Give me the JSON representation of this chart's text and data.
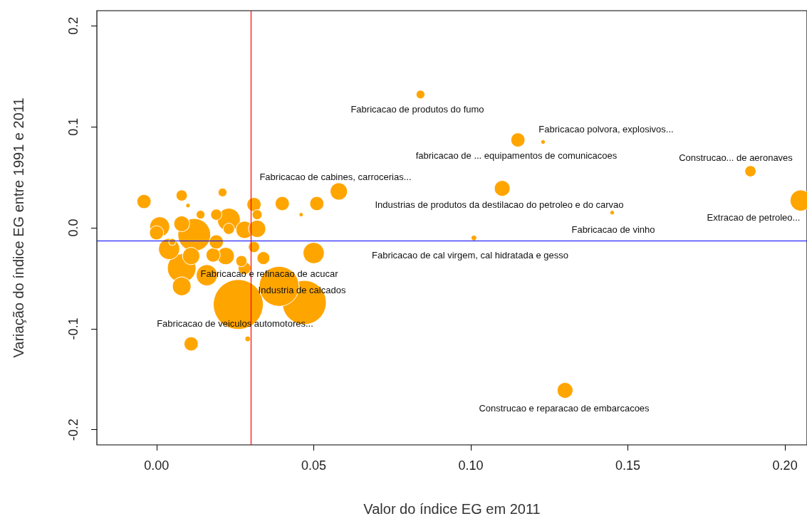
{
  "chart_data": {
    "type": "bubble",
    "xlabel": "Valor do índice EG em 2011",
    "ylabel": "Variação do índice EG entre 1991 e 2011",
    "color": "#ffa500",
    "marker": "circle",
    "grid": false,
    "x": [
      0.026,
      0.047,
      0.039,
      0.012,
      0.008,
      0.004,
      0.016,
      0.001,
      0.008,
      0.023,
      0.022,
      0.018,
      0.011,
      0.008,
      0.028,
      0.032,
      0.019,
      0.0,
      -0.004,
      0.031,
      0.008,
      0.028,
      0.023,
      0.034,
      0.027,
      0.031,
      0.019,
      0.014,
      0.032,
      0.021,
      0.005,
      0.01,
      0.084,
      0.115,
      0.123,
      0.189,
      0.205,
      0.11,
      0.145,
      0.101,
      0.05,
      0.058,
      0.051,
      0.04,
      0.046,
      0.13,
      0.011,
      0.029
    ],
    "values": [
      -0.076,
      -0.074,
      -0.058,
      -0.007,
      -0.04,
      -0.021,
      -0.047,
      0.001,
      0.004,
      0.008,
      -0.028,
      -0.027,
      -0.028,
      -0.058,
      -0.002,
      -0.001,
      -0.014,
      -0.005,
      0.026,
      0.023,
      0.032,
      -0.04,
      -0.001,
      -0.03,
      -0.033,
      -0.019,
      0.013,
      0.013,
      0.013,
      0.035,
      -0.014,
      0.022,
      0.132,
      0.087,
      0.085,
      0.056,
      0.027,
      0.039,
      0.015,
      -0.01,
      -0.025,
      0.036,
      0.024,
      0.024,
      0.013,
      -0.161,
      -0.115,
      -0.11
    ],
    "sizes": [
      1,
      0.78,
      0.64,
      0.43,
      0.33,
      0.18,
      0.18,
      0.16,
      0.1,
      0.21,
      0.12,
      0.08,
      0.12,
      0.14,
      0.12,
      0.12,
      0.08,
      0.08,
      0.08,
      0.08,
      0.05,
      0.066,
      0.05,
      0.066,
      0.05,
      0.05,
      0.05,
      0.03,
      0.04,
      0.03,
      0.02,
      0.008,
      0.03,
      0.08,
      0.008,
      0.05,
      0.18,
      0.1,
      0.008,
      0.013,
      0.18,
      0.12,
      0.08,
      0.08,
      0.007,
      0.1,
      0.08,
      0.013
    ],
    "xlim": [
      -0.019,
      0.207
    ],
    "ylim": [
      -0.215,
      0.215
    ],
    "xticks": [
      {
        "value": 0,
        "label": "0.00"
      },
      {
        "value": 0.05,
        "label": "0.05"
      },
      {
        "value": 0.1,
        "label": "0.10"
      },
      {
        "value": 0.15,
        "label": "0.15"
      },
      {
        "value": 0.2,
        "label": "0.20"
      }
    ],
    "yticks": [
      {
        "value": -0.2,
        "label": "-0.2"
      },
      {
        "value": -0.1,
        "label": "-0.1"
      },
      {
        "value": 0,
        "label": "0.0"
      },
      {
        "value": 0.1,
        "label": "0.1"
      },
      {
        "value": 0.2,
        "label": "0.2"
      }
    ],
    "ref_lines": [
      {
        "axis": "x",
        "value": 0.03,
        "color": "#ff0000"
      },
      {
        "axis": "y",
        "value": -0.013,
        "color": "#0000ff"
      }
    ],
    "annotations": [
      "Fabricacao de produtos do fumo",
      "Fabricacao polvora, explosivos...",
      "fabricacao de ... equipamentos de comunicacoes",
      "Construcao... de aeronaves",
      "Fabricacao de cabines, carrocerias...",
      "Industrias de produtos da destilacao do petroleo e do carvao",
      "Extracao de petroleo...",
      "Fabricacao de vinho",
      "Fabricacao de cal virgem, cal hidratada e gesso",
      "Fabricacao e refinacao de acucar",
      "Industria de calcados",
      "Fabricacao de veiculos automotores...",
      "Construcao e reparacao de embarcacoes"
    ]
  }
}
